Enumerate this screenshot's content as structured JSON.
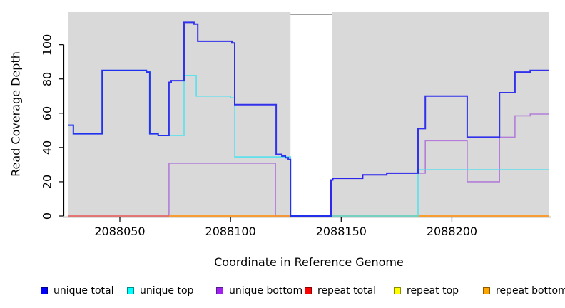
{
  "figure": {
    "page_bg": "#ffffff",
    "panel_bg": "#d9d9d9",
    "axis_color": "#000000"
  },
  "chart_data": {
    "type": "line",
    "style": "step",
    "title": "",
    "xlabel": "Coordinate in Reference Genome",
    "ylabel": "Read Coverage Depth",
    "xlim": [
      2088026.8,
      2088244.0
    ],
    "ylim": [
      0,
      119
    ],
    "x_ticks": [
      2088050,
      2088100,
      2088150,
      2088200
    ],
    "y_ticks": [
      0,
      20,
      40,
      60,
      80,
      100
    ],
    "grid": false,
    "legend_position": "bottom",
    "gap_region": {
      "x_start": 2088127.1,
      "x_end": 2088145.8,
      "fill": "#ffffff",
      "top_border_color": "#808080"
    },
    "series": [
      {
        "name": "repeat top",
        "color": "#ffee00",
        "opacity": 1,
        "width": 1.5,
        "points": [
          [
            2088026.8,
            0
          ],
          [
            2088244,
            0
          ]
        ]
      },
      {
        "name": "repeat total",
        "color": "#e0537a",
        "opacity": 1,
        "width": 1.5,
        "points": [
          [
            2088026.8,
            0
          ],
          [
            2088244,
            0
          ]
        ]
      },
      {
        "name": "unique bottom",
        "color": "#a55dd8",
        "opacity": 0.75,
        "width": 1.6,
        "points": [
          [
            2088072.2,
            0
          ],
          [
            2088072.2,
            30.8
          ],
          [
            2088120.3,
            30.8
          ],
          [
            2088120.3,
            0
          ],
          [
            2088145.4,
            0
          ],
          [
            2088145.4,
            21
          ],
          [
            2088146.2,
            21
          ],
          [
            2088146.2,
            22
          ],
          [
            2088159.7,
            22
          ],
          [
            2088159.7,
            24
          ],
          [
            2088170.6,
            24
          ],
          [
            2088170.6,
            25
          ],
          [
            2088188,
            25
          ],
          [
            2088188,
            44
          ],
          [
            2088206.9,
            44
          ],
          [
            2088206.9,
            20
          ],
          [
            2088221.5,
            20
          ],
          [
            2088221.5,
            46
          ],
          [
            2088228.5,
            46
          ],
          [
            2088228.5,
            58.5
          ],
          [
            2088235.4,
            58.5
          ],
          [
            2088235.4,
            59.5
          ],
          [
            2088244,
            59.5
          ]
        ]
      },
      {
        "name": "repeat bottom",
        "color": "#ff9e1b",
        "opacity": 1,
        "width": 1.6,
        "points": [
          [
            2088072.2,
            0
          ],
          [
            2088244,
            0
          ]
        ]
      },
      {
        "name": "unique top",
        "color": "#49e2ee",
        "opacity": 0.85,
        "width": 1.7,
        "points": [
          [
            2088026.8,
            53
          ],
          [
            2088029,
            53
          ],
          [
            2088029,
            48
          ],
          [
            2088042,
            48
          ],
          [
            2088042,
            85
          ],
          [
            2088062,
            85
          ],
          [
            2088062,
            84
          ],
          [
            2088063.5,
            84
          ],
          [
            2088063.5,
            48
          ],
          [
            2088067.3,
            48
          ],
          [
            2088067.3,
            47
          ],
          [
            2088079,
            47
          ],
          [
            2088079,
            82
          ],
          [
            2088084.5,
            82
          ],
          [
            2088084.5,
            70
          ],
          [
            2088100,
            70
          ],
          [
            2088100,
            69
          ],
          [
            2088101.9,
            69
          ],
          [
            2088101.9,
            34.5
          ],
          [
            2088127.1,
            34.5
          ],
          [
            2088127.1,
            0
          ],
          [
            2088184.7,
            0
          ],
          [
            2088184.7,
            27
          ],
          [
            2088244,
            27
          ]
        ]
      },
      {
        "name": "unique total",
        "color": "#1414f0",
        "opacity": 0.85,
        "width": 2,
        "points": [
          [
            2088026.8,
            53
          ],
          [
            2088029,
            53
          ],
          [
            2088029,
            48
          ],
          [
            2088042,
            48
          ],
          [
            2088042,
            85
          ],
          [
            2088062,
            85
          ],
          [
            2088062,
            84
          ],
          [
            2088063.5,
            84
          ],
          [
            2088063.5,
            48
          ],
          [
            2088067.3,
            48
          ],
          [
            2088067.3,
            47
          ],
          [
            2088072.2,
            47
          ],
          [
            2088072.2,
            78
          ],
          [
            2088073.2,
            78
          ],
          [
            2088073.2,
            79
          ],
          [
            2088079,
            79
          ],
          [
            2088079,
            113
          ],
          [
            2088083.5,
            113
          ],
          [
            2088083.5,
            112
          ],
          [
            2088085.2,
            112
          ],
          [
            2088085.2,
            102
          ],
          [
            2088100.6,
            102
          ],
          [
            2088100.6,
            101
          ],
          [
            2088101.9,
            101
          ],
          [
            2088101.9,
            65
          ],
          [
            2088120.6,
            65
          ],
          [
            2088120.6,
            36
          ],
          [
            2088123.2,
            36
          ],
          [
            2088123.2,
            35
          ],
          [
            2088124.8,
            35
          ],
          [
            2088124.8,
            34
          ],
          [
            2088126.1,
            34
          ],
          [
            2088126.1,
            33
          ],
          [
            2088127.1,
            33
          ],
          [
            2088127.1,
            0
          ],
          [
            2088145.4,
            0
          ],
          [
            2088145.4,
            21
          ],
          [
            2088146.2,
            21
          ],
          [
            2088146.2,
            22
          ],
          [
            2088159.7,
            22
          ],
          [
            2088159.7,
            24
          ],
          [
            2088170.6,
            24
          ],
          [
            2088170.6,
            25
          ],
          [
            2088184.7,
            25
          ],
          [
            2088184.7,
            51
          ],
          [
            2088188,
            51
          ],
          [
            2088188,
            70
          ],
          [
            2088206.9,
            70
          ],
          [
            2088206.9,
            46
          ],
          [
            2088221.5,
            46
          ],
          [
            2088221.5,
            72
          ],
          [
            2088228.5,
            72
          ],
          [
            2088228.5,
            84
          ],
          [
            2088235.4,
            84
          ],
          [
            2088235.4,
            85
          ],
          [
            2088244,
            85
          ]
        ]
      }
    ]
  },
  "legend": {
    "items": [
      {
        "label": "unique total",
        "color": "#0000ff",
        "border": "#00008b"
      },
      {
        "label": "unique top",
        "color": "#00ffff",
        "border": "#008b8b"
      },
      {
        "label": "unique bottom",
        "color": "#a020f0",
        "border": "#551a8b"
      },
      {
        "label": "repeat total",
        "color": "#ff0000",
        "border": "#8b0000"
      },
      {
        "label": "repeat top",
        "color": "#ffff00",
        "border": "#8b8b00"
      },
      {
        "label": "repeat bottom",
        "color": "#ffa500",
        "border": "#8b5a00"
      }
    ]
  }
}
